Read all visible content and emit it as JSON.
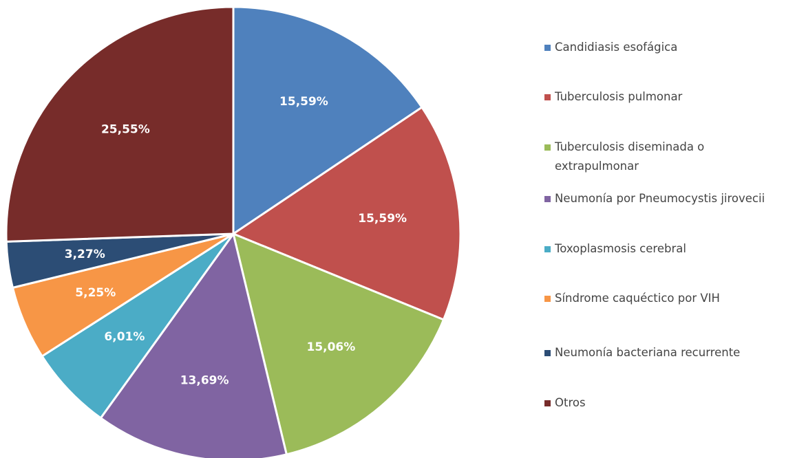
{
  "chart_data": {
    "type": "pie",
    "categories": [
      "Candidiasis esofágica",
      "Tuberculosis pulmonar",
      "Tuberculosis diseminada o extrapulmonar",
      "Neumonía por Pneumocystis jirovecii",
      "Toxoplasmosis cerebral",
      "Síndrome caquéctico por VIH",
      "Neumonía bacteriana recurrente",
      "Otros"
    ],
    "values": [
      15.59,
      15.59,
      15.06,
      13.69,
      6.01,
      5.25,
      3.27,
      25.55
    ],
    "value_labels": [
      "15,59%",
      "15,59%",
      "15,06%",
      "13,69%",
      "6,01%",
      "5,25%",
      "3,27%",
      "25,55%"
    ],
    "colors": [
      "#4f81bd",
      "#c0504d",
      "#9bbb59",
      "#8064a2",
      "#4bacc6",
      "#f79646",
      "#2c4d75",
      "#772c2a"
    ],
    "legend": "right"
  }
}
